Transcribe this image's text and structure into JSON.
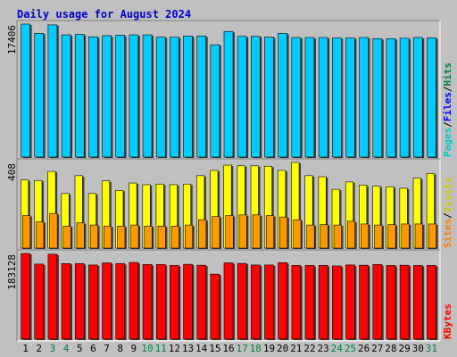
{
  "chart_data": {
    "type": "bar",
    "title": "Daily usage for August 2024",
    "categories": [
      "1",
      "2",
      "3",
      "4",
      "5",
      "6",
      "7",
      "8",
      "9",
      "10",
      "11",
      "12",
      "13",
      "14",
      "15",
      "16",
      "17",
      "18",
      "19",
      "20",
      "21",
      "22",
      "23",
      "24",
      "25",
      "26",
      "27",
      "28",
      "29",
      "30",
      "31"
    ],
    "weekend_days": [
      "3",
      "4",
      "10",
      "11",
      "17",
      "18",
      "24",
      "25",
      "31"
    ],
    "colors": {
      "background": "#c0c0c0",
      "title": "#0000cc",
      "hits": "#00ccff",
      "hits_top": "#33ffff",
      "files": "#33ccee",
      "visits": "#ffff00",
      "sites": "#ff9900",
      "kbytes": "#ff0000",
      "pages_label": "#00cccc",
      "files_label": "#0000ff",
      "hits_label": "#008040",
      "sites_label": "#ff8000",
      "visits_label": "#cccc00",
      "kbytes_label": "#ff0000",
      "weekday_label": "#000000",
      "weekend_label": "#008040"
    },
    "panels": [
      {
        "id": "hits",
        "ymax": 17406,
        "ymax_label": "17406",
        "legend": [
          {
            "text": "Pages",
            "color": "pages_label"
          },
          {
            "text": "/",
            "color": "weekday_label"
          },
          {
            "text": "Files",
            "color": "files_label"
          },
          {
            "text": "/",
            "color": "weekday_label"
          },
          {
            "text": "Hits",
            "color": "hits_label"
          }
        ],
        "series": [
          {
            "name": "Hits",
            "color": "hits",
            "values": [
              17406,
              16200,
              17300,
              16000,
              16050,
              15750,
              15900,
              15950,
              16000,
              16000,
              15700,
              15700,
              15850,
              15850,
              14700,
              16450,
              15800,
              15800,
              15700,
              16200,
              15650,
              15650,
              15650,
              15600,
              15600,
              15650,
              15500,
              15500,
              15550,
              15650,
              15600
            ]
          }
        ]
      },
      {
        "id": "visits",
        "ymax": 408,
        "ymax_label": "408",
        "legend": [
          {
            "text": "Sites",
            "color": "sites_label"
          },
          {
            "text": "/",
            "color": "weekday_label"
          },
          {
            "text": "Visits",
            "color": "visits_label"
          }
        ],
        "series": [
          {
            "name": "Visits",
            "color": "visits",
            "values": [
              325,
              322,
              365,
              260,
              345,
              260,
              320,
              275,
              310,
              302,
              305,
              302,
              305,
              345,
              370,
              395,
              392,
              392,
              390,
              370,
              408,
              345,
              340,
              280,
              315,
              300,
              295,
              292,
              285,
              333,
              355
            ]
          },
          {
            "name": "Sites",
            "color": "sites",
            "values": [
              155,
              125,
              165,
              105,
              120,
              110,
              105,
              105,
              110,
              105,
              105,
              105,
              110,
              135,
              150,
              155,
              158,
              158,
              155,
              148,
              135,
              110,
              112,
              110,
              128,
              115,
              110,
              112,
              115,
              115,
              115
            ]
          }
        ]
      },
      {
        "id": "kbytes",
        "ymax": 183128,
        "ymax_label": "183128",
        "legend": [
          {
            "text": "KBytes",
            "color": "kbytes_label"
          }
        ],
        "series": [
          {
            "name": "KBytes",
            "color": "kbytes",
            "values": [
              183128,
              160500,
              181500,
              161500,
              161500,
              158500,
              163000,
              161500,
              164000,
              159500,
              159500,
              157500,
              160000,
              158000,
              139000,
              163000,
              162000,
              158500,
              158500,
              163500,
              157500,
              157500,
              157500,
              156500,
              158500,
              158000,
              159500,
              157500,
              158000,
              157500,
              157500
            ]
          }
        ]
      }
    ]
  }
}
